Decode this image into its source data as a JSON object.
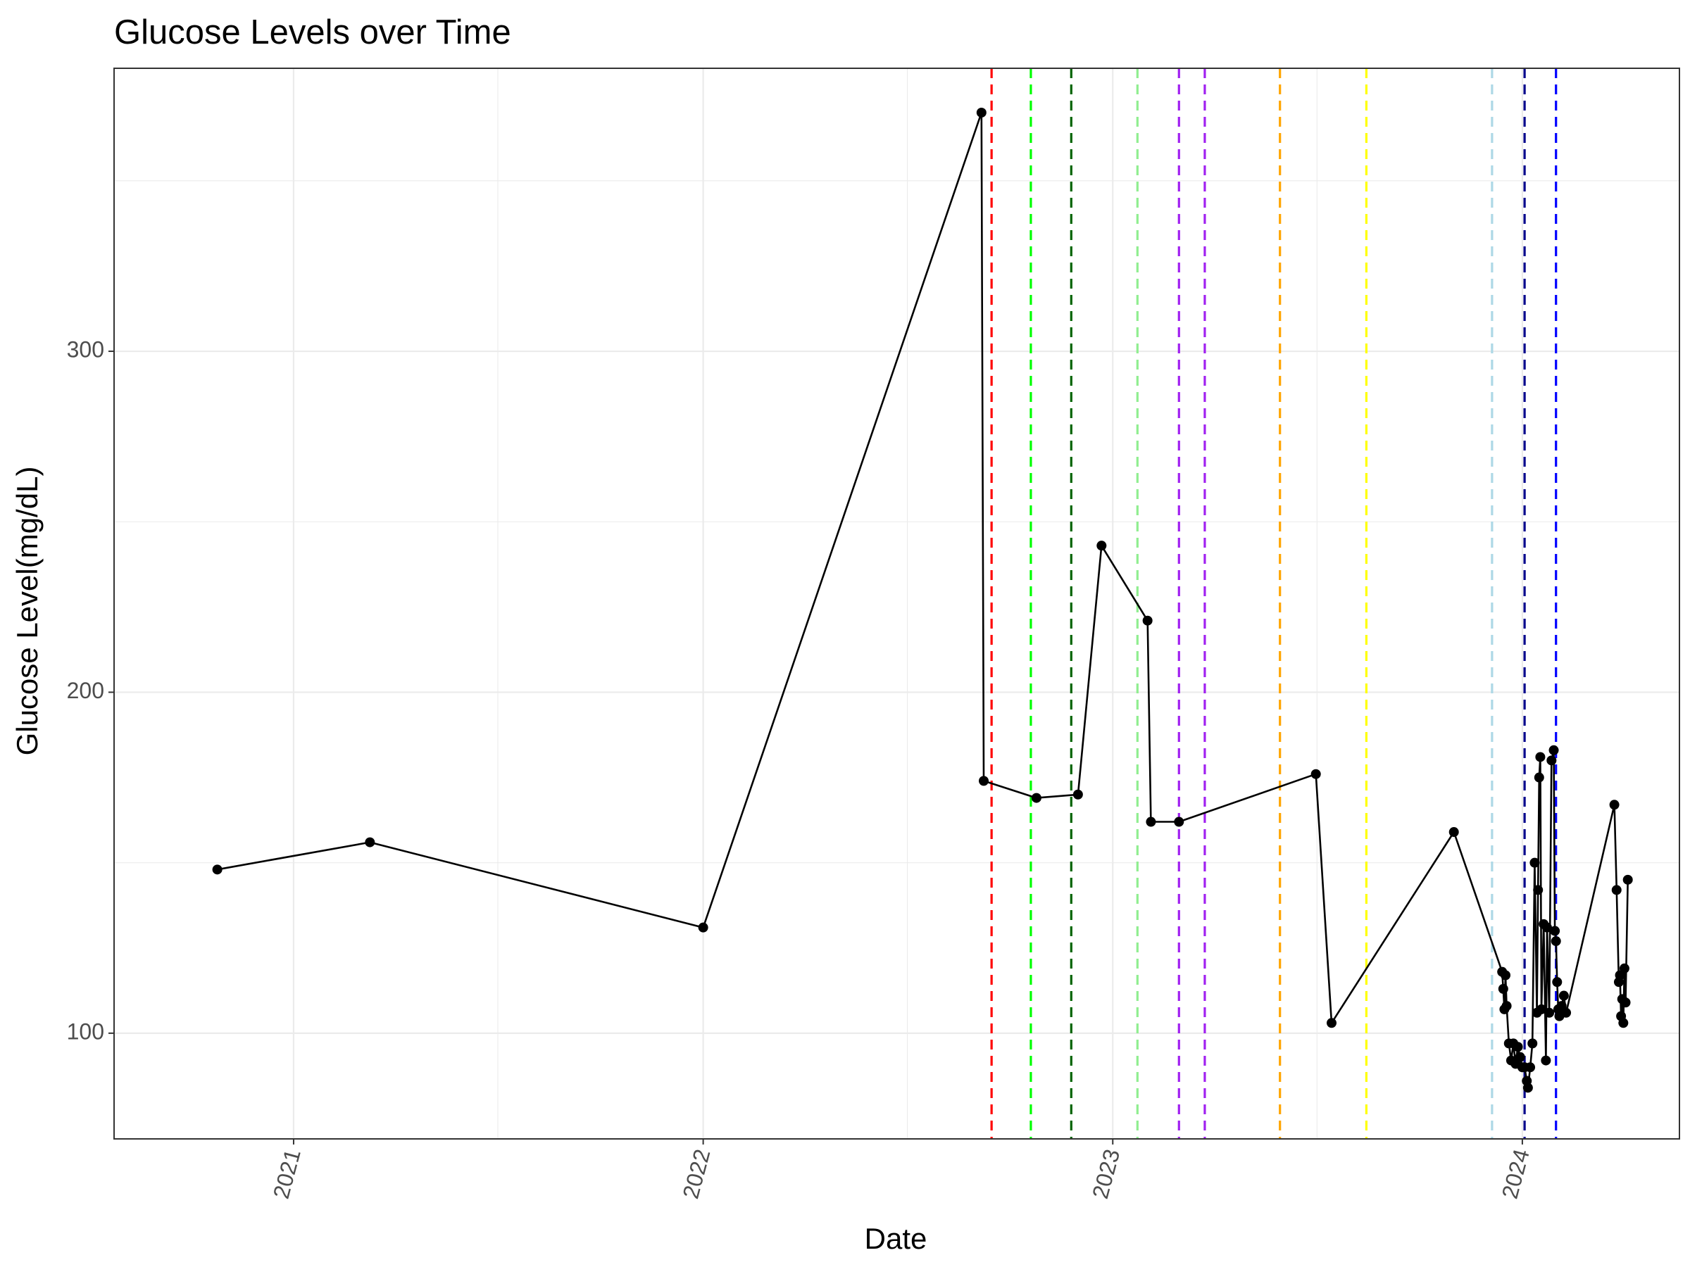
{
  "chart_data": {
    "type": "line",
    "title": "Glucose Levels over Time",
    "xlabel": "Date",
    "ylabel": "Glucose Level(mg/dL)",
    "x_ticks": [
      "2021-01-01",
      "2022-01-01",
      "2023-01-01",
      "2024-01-01"
    ],
    "x_tick_labels": [
      "2021",
      "2022",
      "2023",
      "2024"
    ],
    "y_ticks": [
      100,
      200,
      300
    ],
    "y_tick_labels": [
      "100",
      "200",
      "300"
    ],
    "xlim": [
      "2020-07-25",
      "2024-05-20"
    ],
    "ylim": [
      69,
      383
    ],
    "grid": true,
    "line_color": "#000000",
    "series": [
      {
        "points": [
          [
            "2020-10-25",
            148
          ],
          [
            "2021-03-10",
            156
          ],
          [
            "2022-01-01",
            131
          ],
          [
            "2022-09-06",
            370
          ],
          [
            "2022-09-08",
            174
          ],
          [
            "2022-10-25",
            169
          ],
          [
            "2022-12-01",
            170
          ],
          [
            "2022-12-22",
            243
          ],
          [
            "2023-02-01",
            221
          ],
          [
            "2023-02-04",
            162
          ],
          [
            "2023-03-01",
            162
          ],
          [
            "2023-07-01",
            176
          ],
          [
            "2023-07-15",
            103
          ],
          [
            "2023-11-01",
            159
          ],
          [
            "2023-12-14",
            118
          ],
          [
            "2023-12-15",
            113
          ],
          [
            "2023-12-16",
            107
          ],
          [
            "2023-12-17",
            117
          ],
          [
            "2023-12-18",
            108
          ],
          [
            "2023-12-20",
            97
          ],
          [
            "2023-12-22",
            92
          ],
          [
            "2023-12-24",
            97
          ],
          [
            "2023-12-26",
            91
          ],
          [
            "2023-12-28",
            96
          ],
          [
            "2023-12-30",
            93
          ],
          [
            "2024-01-01",
            90
          ],
          [
            "2024-01-03",
            90
          ],
          [
            "2024-01-05",
            86
          ],
          [
            "2024-01-06",
            84
          ],
          [
            "2024-01-08",
            90
          ],
          [
            "2024-01-10",
            97
          ],
          [
            "2024-01-12",
            150
          ],
          [
            "2024-01-14",
            106
          ],
          [
            "2024-01-15",
            142
          ],
          [
            "2024-01-16",
            175
          ],
          [
            "2024-01-17",
            181
          ],
          [
            "2024-01-18",
            107
          ],
          [
            "2024-01-20",
            132
          ],
          [
            "2024-01-22",
            92
          ],
          [
            "2024-01-23",
            131
          ],
          [
            "2024-01-25",
            106
          ],
          [
            "2024-01-27",
            180
          ],
          [
            "2024-01-29",
            183
          ],
          [
            "2024-01-30",
            130
          ],
          [
            "2024-01-31",
            127
          ],
          [
            "2024-02-01",
            115
          ],
          [
            "2024-02-02",
            107
          ],
          [
            "2024-02-03",
            105
          ],
          [
            "2024-02-05",
            108
          ],
          [
            "2024-02-07",
            111
          ],
          [
            "2024-02-09",
            106
          ],
          [
            "2024-03-23",
            167
          ],
          [
            "2024-03-25",
            142
          ],
          [
            "2024-03-27",
            115
          ],
          [
            "2024-03-28",
            117
          ],
          [
            "2024-03-29",
            105
          ],
          [
            "2024-03-30",
            110
          ],
          [
            "2024-03-31",
            103
          ],
          [
            "2024-04-01",
            119
          ],
          [
            "2024-04-02",
            109
          ],
          [
            "2024-04-04",
            145
          ]
        ]
      }
    ],
    "reference_lines": [
      {
        "x": "2022-09-15",
        "color": "#ff0000"
      },
      {
        "x": "2022-10-20",
        "color": "#00ff00"
      },
      {
        "x": "2022-11-25",
        "color": "#006400"
      },
      {
        "x": "2023-01-23",
        "color": "#90ee90"
      },
      {
        "x": "2023-03-01",
        "color": "#a020f0"
      },
      {
        "x": "2023-03-24",
        "color": "#a020f0"
      },
      {
        "x": "2023-05-30",
        "color": "#ffa500"
      },
      {
        "x": "2023-08-15",
        "color": "#ffff00"
      },
      {
        "x": "2023-12-05",
        "color": "#add8e6"
      },
      {
        "x": "2024-01-03",
        "color": "#00008b"
      },
      {
        "x": "2024-01-31",
        "color": "#0000ff"
      }
    ]
  }
}
